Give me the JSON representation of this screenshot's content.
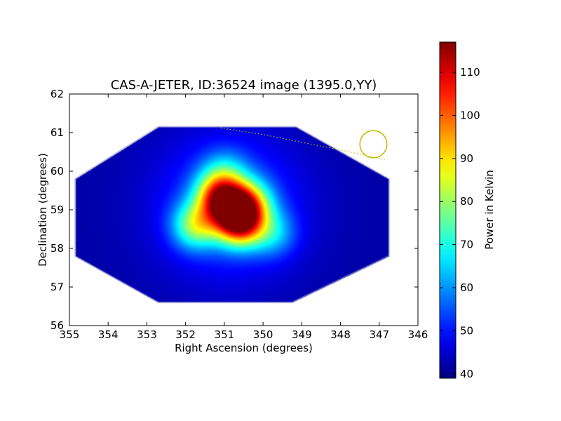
{
  "chart_data": {
    "type": "heatmap",
    "title": "CAS-A-JETER, ID:36524 image (1395.0,YY)",
    "xlabel": "Right Ascension (degrees)",
    "ylabel": "Declination (degrees)",
    "xlim": [
      355,
      346
    ],
    "ylim": [
      56,
      62
    ],
    "x_inverted": true,
    "xticks": [
      355,
      354,
      353,
      352,
      351,
      350,
      349,
      348,
      347,
      346
    ],
    "yticks": [
      56,
      57,
      58,
      59,
      60,
      61,
      62
    ],
    "grid": false,
    "colormap": "jet",
    "colorbar": {
      "label": "Power in Kelvin",
      "min": 39,
      "max": 117,
      "ticks": [
        40,
        50,
        60,
        70,
        80,
        90,
        100,
        110
      ]
    },
    "background_level": 42,
    "footprint_octagon": [
      [
        352.7,
        61.15
      ],
      [
        349.15,
        61.15
      ],
      [
        346.75,
        59.8
      ],
      [
        346.75,
        57.8
      ],
      [
        349.25,
        56.6
      ],
      [
        352.7,
        56.6
      ],
      [
        354.85,
        57.8
      ],
      [
        354.85,
        59.8
      ]
    ],
    "sources": [
      {
        "ra": 350.6,
        "dec": 58.65,
        "peak": 116
      },
      {
        "ra": 351.15,
        "dec": 59.35,
        "peak": 111
      },
      {
        "ra": 351.75,
        "dec": 58.6,
        "peak": 91
      },
      {
        "ra": 350.35,
        "dec": 59.2,
        "peak": 86
      },
      {
        "ra": 349.75,
        "dec": 58.4,
        "peak": 68
      },
      {
        "ra": 351.0,
        "dec": 59.95,
        "peak": 66
      },
      {
        "ra": 350.75,
        "dec": 59.0,
        "peak": 96
      }
    ],
    "overlays": {
      "beam_circle": {
        "ra": 347.15,
        "dec": 60.7,
        "radius_deg": 0.35,
        "color": "#bfbf00"
      },
      "dotted_track": {
        "points": [
          [
            351.1,
            61.12
          ],
          [
            350.0,
            60.95
          ],
          [
            349.0,
            60.75
          ],
          [
            348.0,
            60.55
          ],
          [
            346.85,
            60.3
          ]
        ],
        "color": "#bfbf00"
      }
    }
  }
}
